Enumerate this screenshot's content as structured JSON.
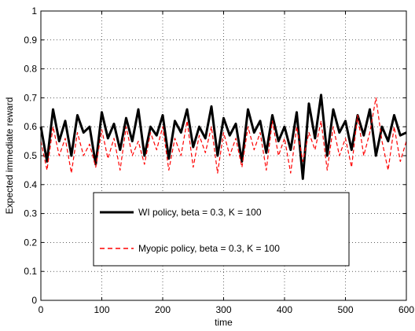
{
  "chart_data": {
    "type": "line",
    "title": "",
    "xlabel": "time",
    "ylabel": "Expected immediate reward",
    "xlim": [
      0,
      600
    ],
    "ylim": [
      0,
      1
    ],
    "x_ticks": [
      0,
      100,
      200,
      300,
      400,
      500,
      600
    ],
    "y_ticks": [
      0,
      0.1,
      0.2,
      0.3,
      0.4,
      0.5,
      0.6,
      0.7,
      0.8,
      0.9,
      1
    ],
    "x_tick_labels": [
      "0",
      "100",
      "200",
      "300",
      "400",
      "500",
      "600"
    ],
    "y_tick_labels": [
      "0",
      "0.1",
      "0.2",
      "0.3",
      "0.4",
      "0.5",
      "0.6",
      "0.7",
      "0.8",
      "0.9",
      "1"
    ],
    "grid": true,
    "legend_position": "center-left",
    "series": [
      {
        "name": "WI policy, beta = 0.3, K = 100",
        "color": "#000000",
        "style": "solid",
        "x": [
          0,
          10,
          20,
          30,
          40,
          50,
          60,
          70,
          80,
          90,
          100,
          110,
          120,
          130,
          140,
          150,
          160,
          170,
          180,
          190,
          200,
          210,
          220,
          230,
          240,
          250,
          260,
          270,
          280,
          290,
          300,
          310,
          320,
          330,
          340,
          350,
          360,
          370,
          380,
          390,
          400,
          410,
          420,
          430,
          440,
          450,
          460,
          470,
          480,
          490,
          500,
          510,
          520,
          530,
          540,
          550,
          560,
          570,
          580,
          590,
          600
        ],
        "values": [
          0.6,
          0.48,
          0.66,
          0.55,
          0.62,
          0.5,
          0.64,
          0.58,
          0.6,
          0.47,
          0.65,
          0.56,
          0.61,
          0.52,
          0.63,
          0.55,
          0.66,
          0.5,
          0.6,
          0.57,
          0.64,
          0.49,
          0.62,
          0.58,
          0.66,
          0.53,
          0.6,
          0.56,
          0.67,
          0.5,
          0.63,
          0.57,
          0.61,
          0.48,
          0.66,
          0.58,
          0.62,
          0.51,
          0.64,
          0.55,
          0.6,
          0.52,
          0.65,
          0.42,
          0.68,
          0.56,
          0.71,
          0.5,
          0.66,
          0.58,
          0.62,
          0.52,
          0.64,
          0.57,
          0.66,
          0.5,
          0.6,
          0.55,
          0.64,
          0.57,
          0.58
        ]
      },
      {
        "name": "Myopic policy, beta = 0.3, K = 100",
        "color": "#ff0000",
        "style": "dashed",
        "x": [
          0,
          10,
          20,
          30,
          40,
          50,
          60,
          70,
          80,
          90,
          100,
          110,
          120,
          130,
          140,
          150,
          160,
          170,
          180,
          190,
          200,
          210,
          220,
          230,
          240,
          250,
          260,
          270,
          280,
          290,
          300,
          310,
          320,
          330,
          340,
          350,
          360,
          370,
          380,
          390,
          400,
          410,
          420,
          430,
          440,
          450,
          460,
          470,
          480,
          490,
          500,
          510,
          520,
          530,
          540,
          550,
          560,
          570,
          580,
          590,
          600
        ],
        "values": [
          0.55,
          0.45,
          0.6,
          0.5,
          0.56,
          0.44,
          0.58,
          0.5,
          0.54,
          0.46,
          0.59,
          0.49,
          0.56,
          0.45,
          0.6,
          0.5,
          0.55,
          0.47,
          0.58,
          0.52,
          0.6,
          0.45,
          0.56,
          0.5,
          0.62,
          0.46,
          0.57,
          0.51,
          0.6,
          0.44,
          0.58,
          0.5,
          0.56,
          0.46,
          0.6,
          0.52,
          0.58,
          0.45,
          0.62,
          0.5,
          0.56,
          0.44,
          0.6,
          0.48,
          0.58,
          0.52,
          0.62,
          0.45,
          0.6,
          0.5,
          0.56,
          0.46,
          0.64,
          0.5,
          0.58,
          0.7,
          0.55,
          0.45,
          0.6,
          0.48,
          0.55
        ]
      }
    ]
  }
}
